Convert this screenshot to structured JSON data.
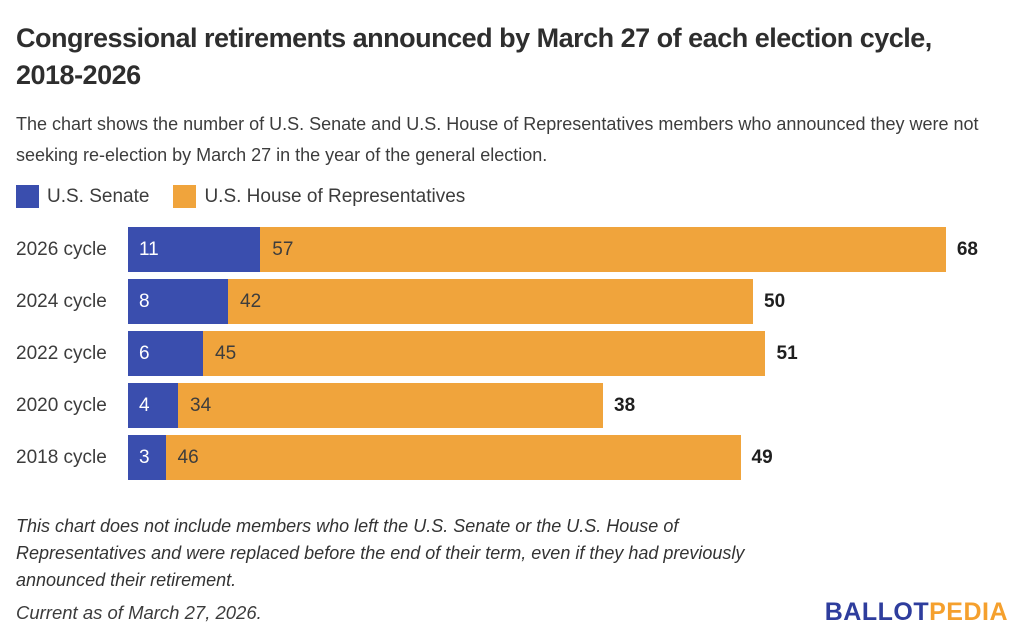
{
  "title_lines": [
    "Congressional retirements announced by March 27 of each election cycle,",
    "2018-2026"
  ],
  "subtitle": "The chart shows the number of U.S. Senate and U.S. House of Representatives members who announced they were not seeking re-election by March 27 in the year of the general election.",
  "legend": [
    {
      "label": "U.S. Senate",
      "color": "#3a4eae"
    },
    {
      "label": "U.S. House of Representatives",
      "color": "#f0a43c"
    }
  ],
  "chart_data": {
    "type": "bar",
    "orientation": "horizontal",
    "stacked": true,
    "categories": [
      "2026 cycle",
      "2024 cycle",
      "2022 cycle",
      "2020 cycle",
      "2018 cycle"
    ],
    "series": [
      {
        "name": "U.S. Senate",
        "color": "#3a4eae",
        "values": [
          11,
          8,
          6,
          4,
          3
        ]
      },
      {
        "name": "U.S. House of Representatives",
        "color": "#f0a43c",
        "values": [
          57,
          42,
          45,
          34,
          46
        ]
      }
    ],
    "totals": [
      68,
      50,
      51,
      38,
      49
    ],
    "xlim": [
      0,
      68
    ],
    "grid": false,
    "legend_position": "top",
    "value_label_position": "inside-start",
    "total_label_position": "outside-end"
  },
  "footnote": "This chart does not include members who left the U.S. Senate or the U.S. House of Representatives and were replaced before the end of their term, even if they had previously announced their retirement.",
  "current_as_of": "Current as of March 27, 2026.",
  "logo": {
    "text_primary": "BALLOT",
    "text_secondary": "PEDIA",
    "primary_color": "#2e3d9d",
    "secondary_color": "#f5a02d"
  }
}
